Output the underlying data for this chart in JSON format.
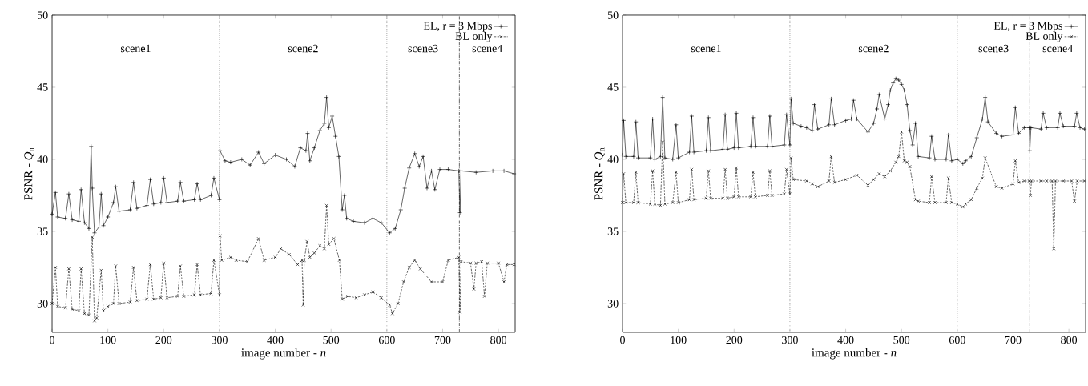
{
  "chart_data": [
    {
      "type": "line",
      "xlabel": "image number - *n*",
      "ylabel": "PSNR - *Q*$_{n}$",
      "xlim": [
        0,
        830
      ],
      "ylim": [
        28,
        50
      ],
      "xticks": [
        0,
        100,
        200,
        300,
        400,
        500,
        600,
        700,
        800
      ],
      "yticks": [
        30,
        35,
        40,
        45,
        50
      ],
      "legend": "top right",
      "grid": false,
      "series": [
        {
          "name": "EL, r = 3 Mbps",
          "color": "#000000",
          "marker": "cross",
          "line_style": "solid",
          "x": [
            0,
            6,
            10,
            24,
            30,
            36,
            48,
            52,
            58,
            66,
            70,
            72,
            76,
            84,
            88,
            92,
            100,
            110,
            114,
            120,
            140,
            146,
            152,
            170,
            176,
            182,
            195,
            200,
            206,
            225,
            230,
            236,
            255,
            260,
            266,
            285,
            290,
            300,
            301,
            310,
            320,
            340,
            355,
            370,
            380,
            400,
            420,
            435,
            445,
            455,
            458,
            462,
            470,
            480,
            488,
            492,
            496,
            502,
            508,
            514,
            520,
            524,
            528,
            540,
            560,
            575,
            590,
            605,
            615,
            625,
            632,
            640,
            650,
            658,
            665,
            672,
            680,
            686,
            695,
            710,
            729,
            731,
            733,
            760,
            790,
            810,
            828
          ],
          "values": [
            36.2,
            37.7,
            36.0,
            35.9,
            37.6,
            35.8,
            35.7,
            37.9,
            35.6,
            35.2,
            40.9,
            38.0,
            34.9,
            35.3,
            37.6,
            35.4,
            36.0,
            37.0,
            38.1,
            36.4,
            36.5,
            38.4,
            36.6,
            36.8,
            38.6,
            36.9,
            37.0,
            38.7,
            37.0,
            37.1,
            38.4,
            37.1,
            37.2,
            38.3,
            37.2,
            37.5,
            38.7,
            37.2,
            40.6,
            39.9,
            39.8,
            40.0,
            39.6,
            40.5,
            39.7,
            40.3,
            40.0,
            39.5,
            40.8,
            40.6,
            41.8,
            39.9,
            40.8,
            42.0,
            42.5,
            44.3,
            42.2,
            43.0,
            41.6,
            40.2,
            36.5,
            37.5,
            35.9,
            35.7,
            35.6,
            35.9,
            35.6,
            34.9,
            35.2,
            36.5,
            38.0,
            39.4,
            40.4,
            39.5,
            40.2,
            38.0,
            39.2,
            37.9,
            39.3,
            39.3,
            39.2,
            36.3,
            39.2,
            39.1,
            39.2,
            39.2,
            39.0
          ]
        },
        {
          "name": "BL only",
          "color": "#000000",
          "marker": "cross",
          "line_style": "dashed",
          "x": [
            0,
            6,
            10,
            24,
            30,
            36,
            48,
            52,
            58,
            66,
            72,
            76,
            80,
            88,
            92,
            100,
            110,
            114,
            120,
            140,
            146,
            152,
            170,
            176,
            182,
            195,
            200,
            206,
            225,
            230,
            236,
            255,
            260,
            266,
            285,
            290,
            300,
            301,
            304,
            320,
            330,
            350,
            370,
            380,
            400,
            410,
            425,
            440,
            448,
            450,
            452,
            457,
            462,
            470,
            480,
            488,
            492,
            496,
            505,
            515,
            520,
            530,
            545,
            560,
            575,
            590,
            605,
            610,
            620,
            630,
            640,
            650,
            660,
            680,
            700,
            710,
            729,
            731,
            733,
            750,
            756,
            760,
            770,
            775,
            780,
            800,
            810,
            815,
            828
          ],
          "values": [
            30.0,
            32.5,
            29.8,
            29.7,
            32.4,
            29.6,
            29.5,
            32.4,
            29.3,
            29.2,
            34.6,
            28.8,
            29.0,
            32.3,
            29.5,
            29.8,
            30.0,
            32.6,
            30.0,
            30.1,
            32.5,
            30.2,
            30.3,
            32.7,
            30.3,
            30.4,
            32.8,
            30.4,
            30.5,
            32.6,
            30.5,
            30.6,
            32.7,
            30.6,
            30.7,
            33.0,
            30.6,
            34.7,
            33.0,
            33.2,
            33.0,
            32.9,
            34.5,
            33.0,
            33.2,
            33.8,
            33.4,
            32.7,
            33.0,
            29.9,
            33.0,
            34.3,
            33.2,
            33.5,
            34.0,
            33.8,
            36.8,
            34.1,
            34.5,
            33.0,
            30.3,
            30.5,
            30.4,
            30.6,
            30.8,
            30.4,
            29.9,
            29.3,
            30.0,
            31.5,
            32.5,
            33.0,
            32.4,
            31.5,
            31.5,
            33.0,
            33.2,
            29.4,
            32.9,
            32.8,
            31.0,
            32.8,
            32.9,
            30.5,
            32.8,
            32.8,
            31.5,
            32.7,
            32.7
          ]
        }
      ],
      "ref_lines": [
        {
          "axis": "x",
          "value": 300,
          "line_style": "dotted"
        },
        {
          "axis": "x",
          "value": 600,
          "line_style": "dotted"
        },
        {
          "axis": "x",
          "value": 730,
          "line_style": "dashed"
        }
      ],
      "annotations": [
        "scene1",
        "scene2",
        "scene3",
        "scene4"
      ]
    },
    {
      "type": "line",
      "xlabel": "image number - *n*",
      "ylabel": "PSNR - *Q*$_{n}$",
      "xlim": [
        0,
        830
      ],
      "ylim": [
        28,
        50
      ],
      "xticks": [
        0,
        100,
        200,
        300,
        400,
        500,
        600,
        700,
        800
      ],
      "yticks": [
        30,
        35,
        40,
        45,
        50
      ],
      "legend": "top right",
      "grid": false,
      "series": [
        {
          "name": "EL, r = 3 Mbps",
          "color": "#000000",
          "marker": "cross",
          "line_style": "solid",
          "x": [
            0,
            2,
            6,
            20,
            24,
            28,
            50,
            54,
            58,
            68,
            72,
            76,
            90,
            96,
            100,
            120,
            124,
            128,
            150,
            154,
            158,
            180,
            184,
            188,
            200,
            204,
            208,
            230,
            234,
            238,
            260,
            264,
            268,
            290,
            294,
            300,
            302,
            306,
            320,
            330,
            340,
            344,
            350,
            370,
            374,
            380,
            400,
            410,
            414,
            420,
            440,
            450,
            456,
            460,
            470,
            476,
            480,
            485,
            490,
            495,
            500,
            505,
            510,
            515,
            520,
            525,
            530,
            550,
            554,
            560,
            580,
            584,
            590,
            600,
            610,
            615,
            625,
            635,
            645,
            650,
            655,
            670,
            680,
            700,
            704,
            710,
            720,
            729,
            730,
            732,
            750,
            754,
            760,
            780,
            784,
            790,
            810,
            814,
            820,
            828
          ],
          "values": [
            40.3,
            42.7,
            40.2,
            40.2,
            42.6,
            40.1,
            40.1,
            42.8,
            40.0,
            40.2,
            44.3,
            40.1,
            40.0,
            42.4,
            40.1,
            40.5,
            43.0,
            40.5,
            40.6,
            42.9,
            40.6,
            40.7,
            43.1,
            40.7,
            40.8,
            43.2,
            40.8,
            40.9,
            42.9,
            40.9,
            40.9,
            43.0,
            40.9,
            41.0,
            43.1,
            41.0,
            44.2,
            42.5,
            42.3,
            42.2,
            42.0,
            43.8,
            42.1,
            42.4,
            44.2,
            42.4,
            42.7,
            42.8,
            44.1,
            42.8,
            41.9,
            42.5,
            43.5,
            44.5,
            42.8,
            43.8,
            44.8,
            45.3,
            45.6,
            45.5,
            45.2,
            44.8,
            43.8,
            42.0,
            41.0,
            42.5,
            40.2,
            40.1,
            41.6,
            40.0,
            40.0,
            41.7,
            39.9,
            40.0,
            39.7,
            39.9,
            40.2,
            41.5,
            42.8,
            44.3,
            42.6,
            41.8,
            41.6,
            41.7,
            43.6,
            41.8,
            42.2,
            42.2,
            40.6,
            42.2,
            42.1,
            43.2,
            42.2,
            42.2,
            43.2,
            42.3,
            42.3,
            43.2,
            42.2,
            42.1
          ]
        },
        {
          "name": "BL only",
          "color": "#000000",
          "marker": "cross",
          "line_style": "dashed",
          "x": [
            0,
            2,
            6,
            20,
            24,
            28,
            50,
            54,
            58,
            68,
            72,
            76,
            90,
            96,
            100,
            120,
            124,
            128,
            150,
            154,
            158,
            180,
            184,
            188,
            200,
            204,
            208,
            230,
            234,
            238,
            260,
            264,
            268,
            290,
            294,
            300,
            302,
            306,
            330,
            340,
            350,
            370,
            374,
            380,
            400,
            420,
            440,
            450,
            460,
            470,
            480,
            490,
            495,
            500,
            505,
            510,
            515,
            525,
            530,
            550,
            554,
            560,
            580,
            584,
            590,
            600,
            610,
            615,
            625,
            635,
            645,
            650,
            670,
            680,
            700,
            704,
            710,
            720,
            729,
            731,
            733,
            750,
            760,
            770,
            773,
            776,
            790,
            805,
            810,
            815,
            828
          ],
          "values": [
            37.0,
            39.0,
            37.0,
            37.0,
            39.1,
            37.0,
            36.9,
            39.2,
            36.9,
            36.8,
            41.2,
            36.9,
            37.0,
            39.1,
            37.0,
            37.2,
            39.3,
            37.2,
            37.3,
            39.2,
            37.3,
            37.3,
            39.3,
            37.3,
            37.4,
            39.4,
            37.4,
            37.4,
            39.1,
            37.4,
            37.5,
            39.2,
            37.5,
            37.6,
            39.3,
            37.6,
            40.1,
            38.6,
            38.5,
            38.3,
            38.1,
            38.5,
            40.2,
            38.4,
            38.6,
            38.9,
            38.2,
            38.6,
            39.0,
            38.8,
            39.2,
            39.8,
            40.2,
            41.9,
            39.9,
            39.8,
            39.5,
            37.2,
            37.1,
            37.0,
            38.8,
            37.0,
            37.0,
            38.7,
            37.0,
            36.9,
            36.7,
            36.9,
            37.2,
            38.0,
            38.7,
            40.1,
            38.1,
            38.0,
            38.3,
            39.9,
            38.4,
            38.5,
            38.5,
            37.5,
            38.5,
            38.5,
            38.5,
            38.5,
            33.8,
            38.5,
            38.5,
            38.5,
            37.1,
            38.5,
            38.5
          ]
        }
      ],
      "ref_lines": [
        {
          "axis": "x",
          "value": 300,
          "line_style": "dotted"
        },
        {
          "axis": "x",
          "value": 600,
          "line_style": "dotted"
        },
        {
          "axis": "x",
          "value": 730,
          "line_style": "dashed"
        }
      ],
      "annotations": [
        "scene1",
        "scene2",
        "scene3",
        "scene4"
      ]
    }
  ]
}
